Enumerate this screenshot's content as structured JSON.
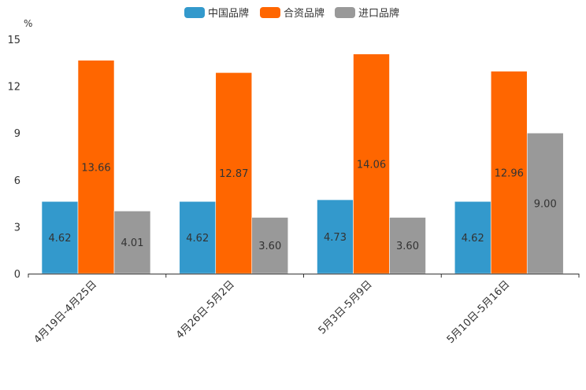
{
  "chart_data": {
    "type": "bar",
    "ylabel": "%",
    "ylim": [
      0,
      15
    ],
    "yticks": [
      0,
      3,
      6,
      9,
      12,
      15
    ],
    "categories": [
      "4月19日-4月25日",
      "4月26日-5月2日",
      "5月3日-5月9日",
      "5月10日-5月16日"
    ],
    "series": [
      {
        "name": "中国品牌",
        "color": "#3399cc",
        "values": [
          4.62,
          4.62,
          4.73,
          4.62
        ]
      },
      {
        "name": "合资品牌",
        "color": "#ff6600",
        "values": [
          13.66,
          12.87,
          14.06,
          12.96
        ]
      },
      {
        "name": "进口品牌",
        "color": "#999999",
        "values": [
          4.01,
          3.6,
          3.6,
          9.0
        ]
      }
    ],
    "legend_position": "top-center",
    "grid": false
  }
}
